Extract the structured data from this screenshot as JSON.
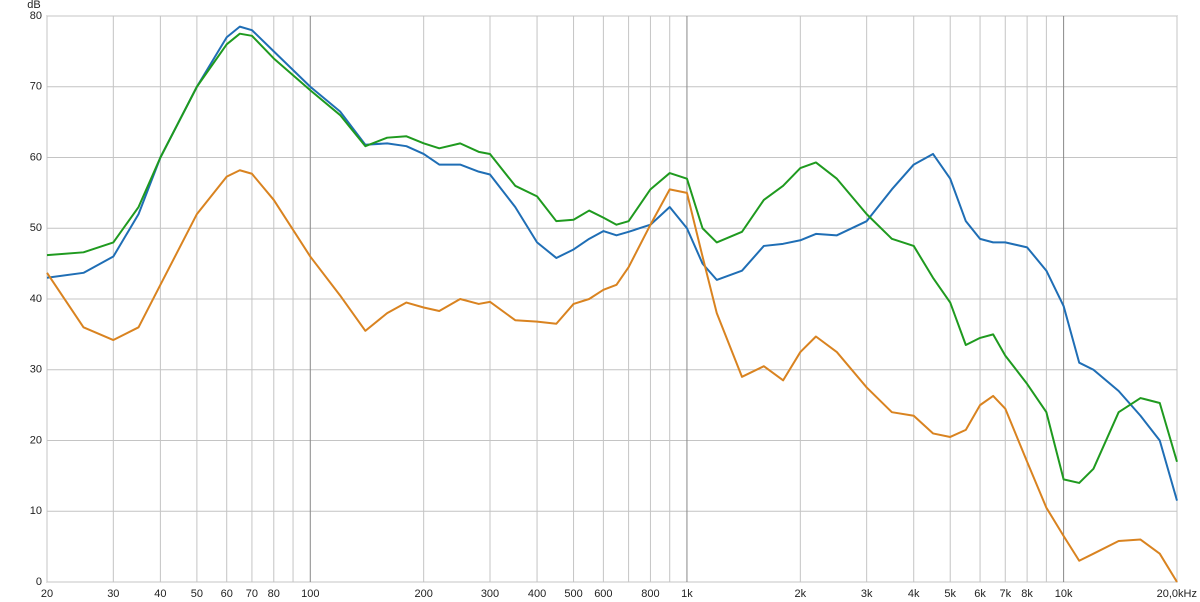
{
  "chart_data": {
    "type": "line",
    "y_label": "dB",
    "log_x": true,
    "grid": true,
    "xlim": [
      20,
      20000
    ],
    "ylim": [
      0,
      80
    ],
    "yticks": [
      0,
      10,
      20,
      30,
      40,
      50,
      60,
      70,
      80
    ],
    "xticks": [
      20,
      30,
      40,
      50,
      60,
      70,
      80,
      100,
      200,
      300,
      400,
      500,
      600,
      800,
      {
        "value": 1000,
        "label": "1k"
      },
      {
        "value": 2000,
        "label": "2k"
      },
      {
        "value": 3000,
        "label": "3k"
      },
      {
        "value": 4000,
        "label": "4k"
      },
      {
        "value": 5000,
        "label": "5k"
      },
      {
        "value": 6000,
        "label": "6k"
      },
      {
        "value": 7000,
        "label": "7k"
      },
      {
        "value": 8000,
        "label": "8k"
      },
      {
        "value": 10000,
        "label": "10k"
      },
      {
        "value": 20000,
        "label": "20,0kHz"
      }
    ],
    "x_minor_grid": [
      90,
      700,
      900,
      9000
    ],
    "x": [
      20,
      25,
      30,
      35,
      40,
      50,
      60,
      65,
      70,
      80,
      100,
      120,
      140,
      160,
      180,
      200,
      220,
      250,
      280,
      300,
      350,
      400,
      450,
      500,
      550,
      600,
      650,
      700,
      800,
      900,
      1000,
      1100,
      1200,
      1400,
      1600,
      1800,
      2000,
      2200,
      2500,
      3000,
      3500,
      4000,
      4500,
      5000,
      5500,
      6000,
      6500,
      7000,
      8000,
      9000,
      10000,
      11000,
      12000,
      14000,
      16000,
      18000,
      20000
    ],
    "series": [
      {
        "color": "#1f6eb5",
        "values": [
          43,
          43.7,
          46,
          52,
          60,
          70,
          77,
          78.5,
          78,
          75,
          70,
          66.5,
          61.8,
          62,
          61.6,
          60.5,
          59,
          59,
          58,
          57.6,
          53,
          48,
          45.8,
          47,
          48.5,
          49.6,
          49,
          49.5,
          50.5,
          53,
          50,
          45,
          42.7,
          44,
          47.5,
          47.8,
          48.3,
          49.2,
          49,
          51,
          55.5,
          59,
          60.5,
          57,
          51,
          48.5,
          48,
          48,
          47.3,
          44,
          39,
          31,
          30,
          27,
          23.5,
          20,
          11.5
        ]
      },
      {
        "color": "#1f9a1f",
        "values": [
          46.2,
          46.6,
          48,
          53,
          60,
          70,
          76,
          77.5,
          77.2,
          74,
          69.5,
          66,
          61.6,
          62.8,
          63,
          62,
          61.3,
          62,
          60.8,
          60.5,
          56,
          54.5,
          51,
          51.2,
          52.5,
          51.5,
          50.5,
          51,
          55.5,
          57.8,
          57,
          50,
          48,
          49.5,
          54,
          56,
          58.5,
          59.3,
          57,
          52,
          48.5,
          47.5,
          43,
          39.5,
          33.5,
          34.5,
          35,
          32,
          28,
          24,
          14.5,
          14,
          16,
          24,
          26,
          25.3,
          17
        ]
      },
      {
        "color": "#d98320",
        "values": [
          43.7,
          36,
          34.2,
          36,
          42,
          52,
          57.3,
          58.2,
          57.7,
          54,
          46,
          40.5,
          35.5,
          38,
          39.5,
          38.8,
          38.3,
          40,
          39.3,
          39.6,
          37,
          36.8,
          36.5,
          39.3,
          40,
          41.3,
          42,
          44.5,
          50.5,
          55.5,
          55,
          46,
          38,
          29,
          30.5,
          28.5,
          32.5,
          34.7,
          32.5,
          27.5,
          24,
          23.5,
          21,
          20.5,
          21.5,
          25,
          26.3,
          24.5,
          17,
          10.5,
          6.5,
          3,
          4,
          5.8,
          6,
          4,
          0
        ]
      }
    ]
  }
}
